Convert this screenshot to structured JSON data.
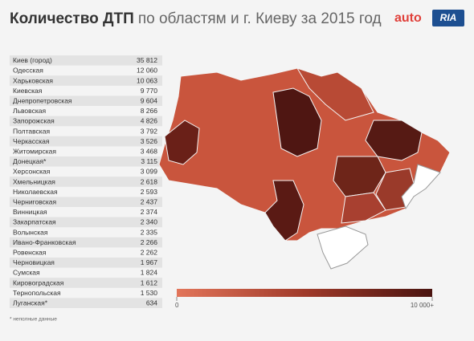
{
  "header": {
    "title_bold": "Количество ДТП",
    "title_rest": "по областям и г. Киеву за 2015 год",
    "logo": {
      "left": "auto",
      "right": "RIA"
    }
  },
  "table": {
    "rows": [
      [
        "Киев (город)",
        "35 812"
      ],
      [
        "Одесская",
        "12 060"
      ],
      [
        "Харьковская",
        "10 063"
      ],
      [
        "Киевская",
        "9 770"
      ],
      [
        "Днепропетровская",
        "9 604"
      ],
      [
        "Львовская",
        "8 266"
      ],
      [
        "Запорожская",
        "4 826"
      ],
      [
        "Полтавская",
        "3 792"
      ],
      [
        "Черкасская",
        "3 526"
      ],
      [
        "Житомирская",
        "3 468"
      ],
      [
        "Донецкая*",
        "3 115"
      ],
      [
        "Херсонская",
        "3 099"
      ],
      [
        "Хмельницкая",
        "2 618"
      ],
      [
        "Николаевская",
        "2 593"
      ],
      [
        "Черниговская",
        "2 437"
      ],
      [
        "Винницкая",
        "2 374"
      ],
      [
        "Закарпатская",
        "2 340"
      ],
      [
        "Волынская",
        "2 335"
      ],
      [
        "Ивано-Франковская",
        "2 266"
      ],
      [
        "Ровенская",
        "2 262"
      ],
      [
        "Черновицкая",
        "1 967"
      ],
      [
        "Сумская",
        "1 824"
      ],
      [
        "Кировоградская",
        "1 612"
      ],
      [
        "Тернопольская",
        "1 530"
      ],
      [
        "Луганская*",
        "634"
      ]
    ]
  },
  "legend": {
    "min": "0",
    "max": "10 000+"
  },
  "footnote": "* неполные данные"
}
